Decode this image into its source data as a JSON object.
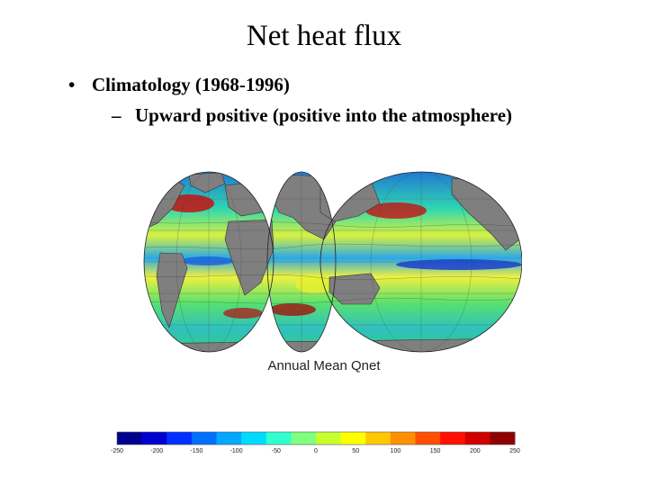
{
  "slide": {
    "title": "Net heat flux",
    "bullet_marker": "•",
    "bullet": "Climatology (1968-1996)",
    "sub_marker": "–",
    "sub_bullet": "Upward positive (positive into the atmosphere)"
  },
  "map": {
    "caption": "Annual Mean Qnet",
    "land_color": "#7f7f7f"
  },
  "colorbar": {
    "tick_labels": [
      "-250",
      "-200",
      "-150",
      "-100",
      "-50",
      "0",
      "50",
      "100",
      "150",
      "200",
      "250"
    ],
    "colors": [
      "#00008f",
      "#0000cf",
      "#0030ff",
      "#0070ff",
      "#00a8ff",
      "#00dcff",
      "#30ffcf",
      "#80ff80",
      "#c8ff30",
      "#ffff00",
      "#ffc800",
      "#ff9000",
      "#ff5000",
      "#ff1000",
      "#d00000",
      "#900000"
    ]
  }
}
